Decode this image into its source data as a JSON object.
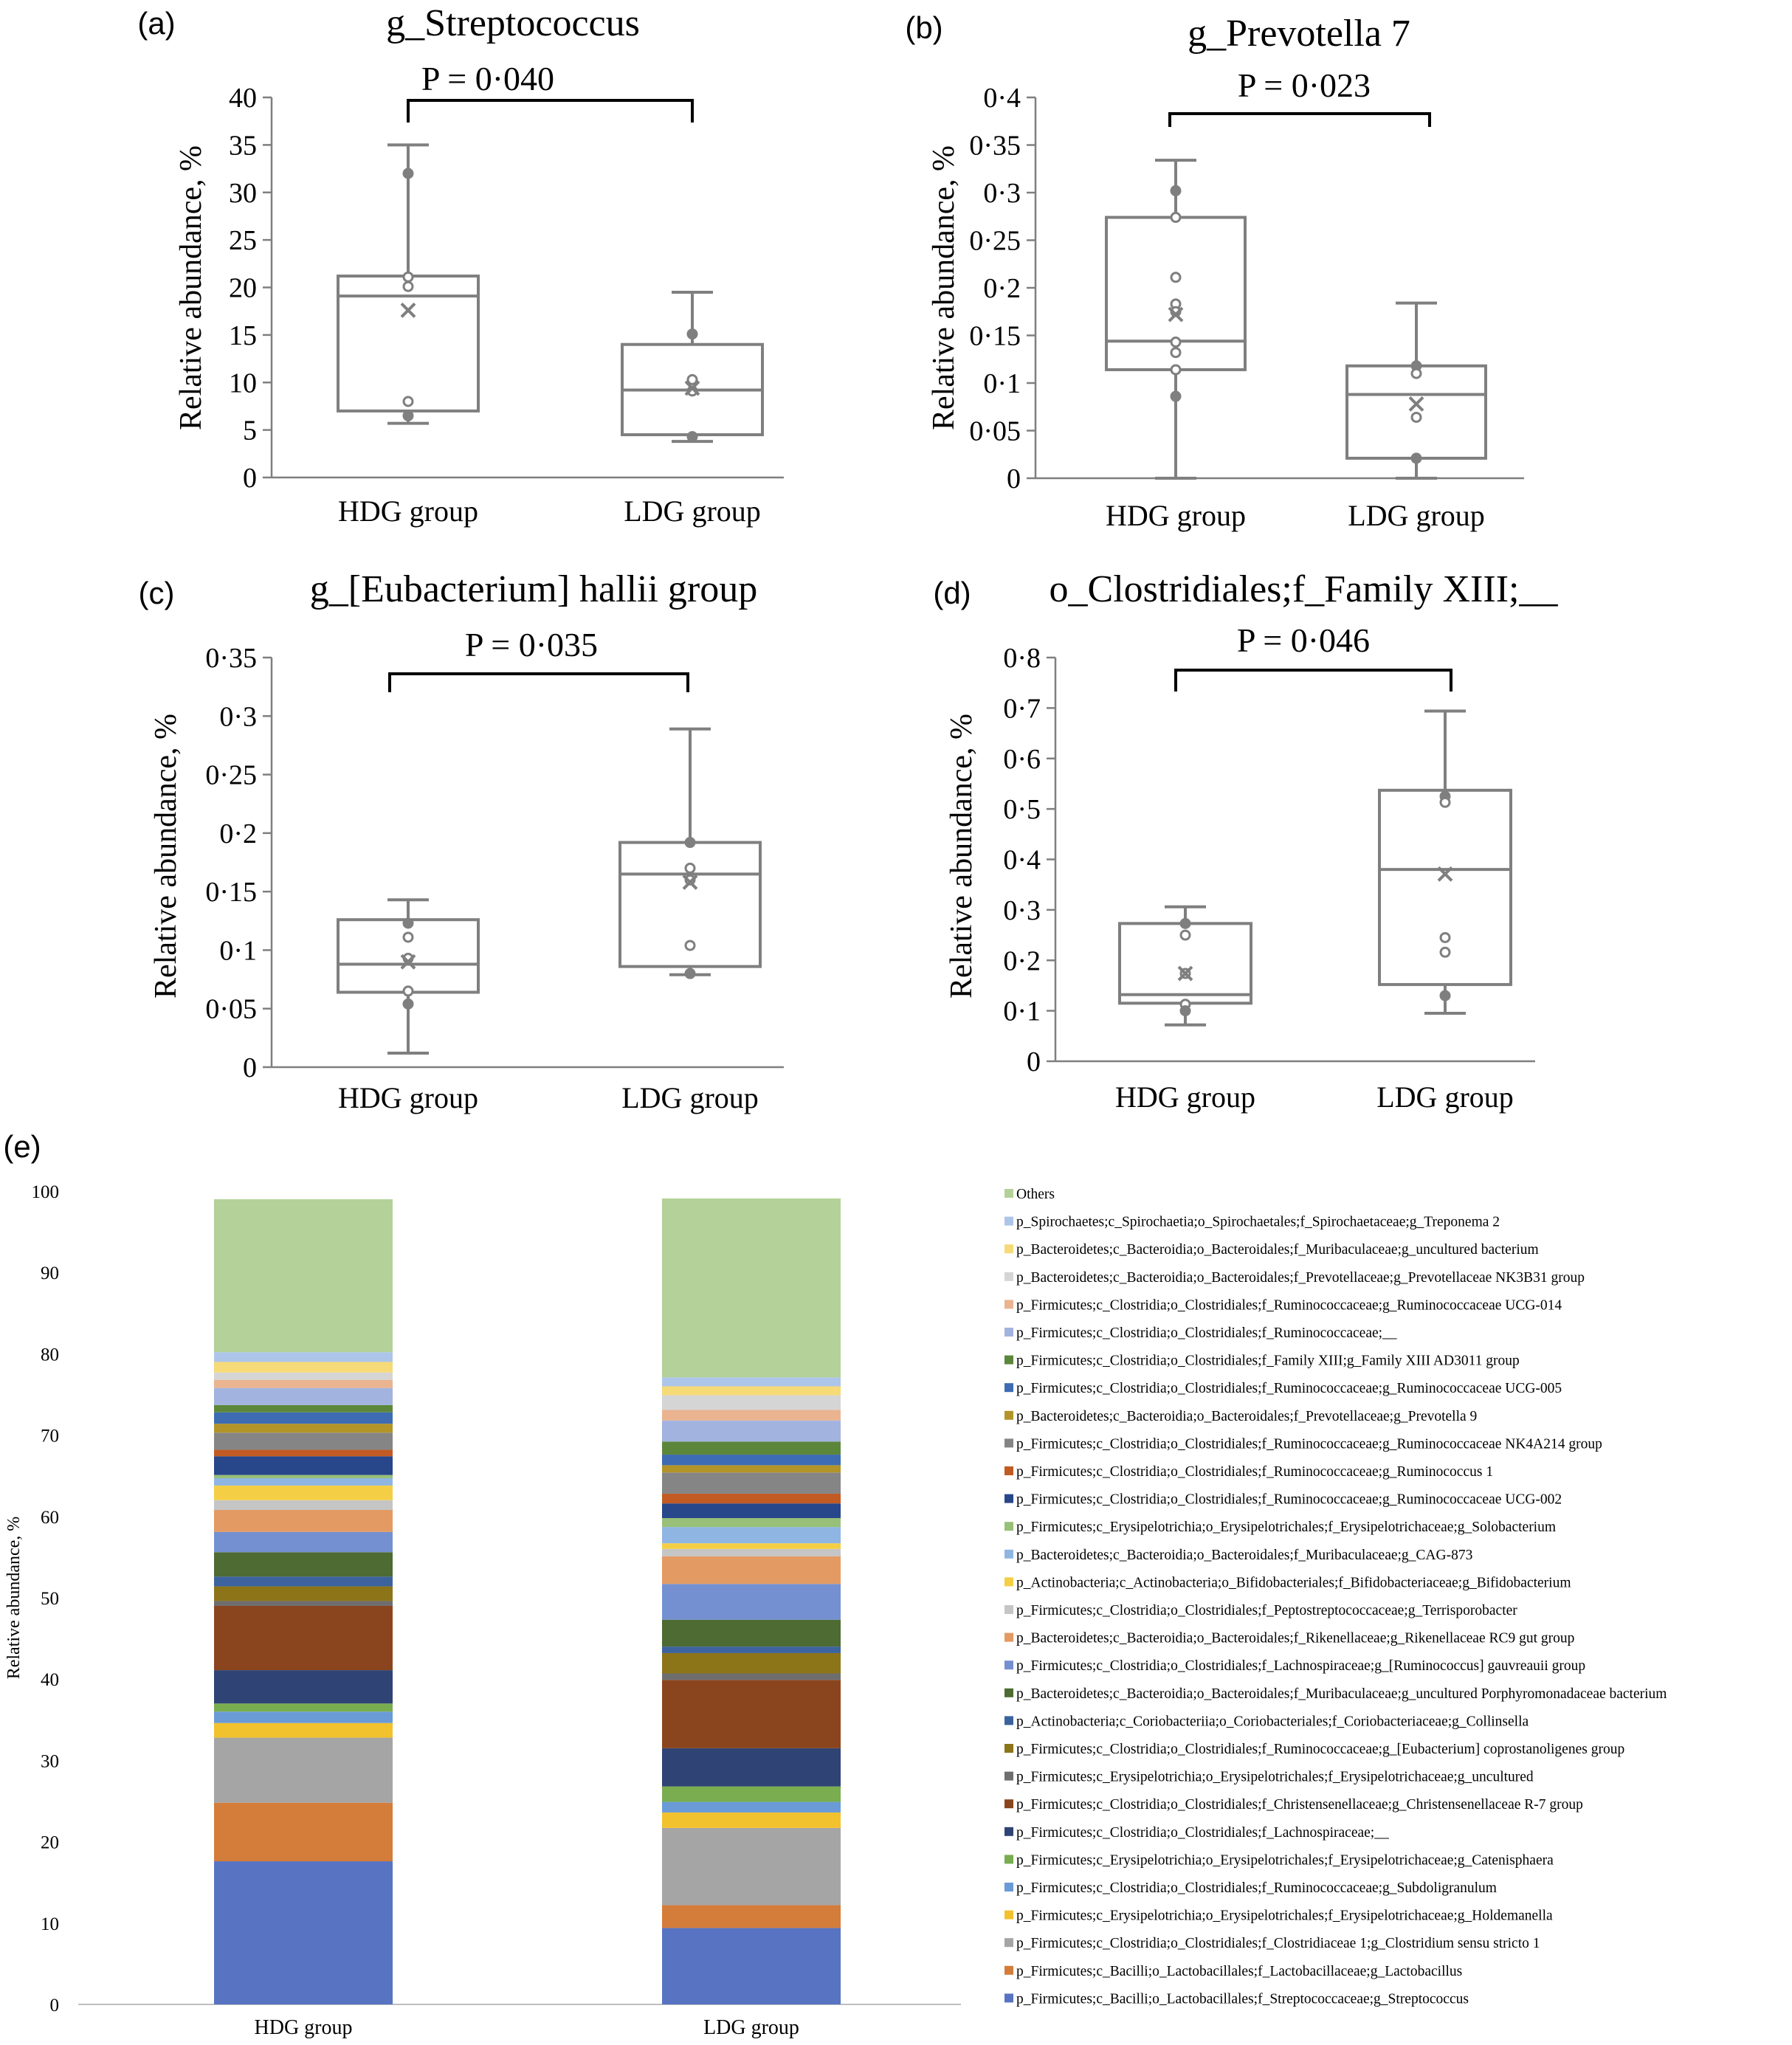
{
  "chart_data": [
    {
      "id": "a",
      "type": "box",
      "panel_label": "(a)",
      "title": "g_Streptococcus",
      "p_value": "P = 0·040",
      "ylabel": "Relative abundance, %",
      "ylim": [
        0,
        40
      ],
      "yticks": [
        "0",
        "5",
        "10",
        "15",
        "20",
        "25",
        "30",
        "35",
        "40"
      ],
      "categories": [
        "HDG group",
        "LDG group"
      ],
      "boxes": [
        {
          "min": 5.7,
          "q1": 7.0,
          "median": 19.1,
          "q3": 21.2,
          "max": 35.0,
          "mean": 17.6,
          "points": [
            32.0,
            21.1,
            20.1,
            8.0,
            6.5
          ]
        },
        {
          "min": 3.8,
          "q1": 4.5,
          "median": 9.2,
          "q3": 14.0,
          "max": 19.5,
          "mean": 9.4,
          "points": [
            15.1,
            10.3,
            9.1,
            4.3
          ]
        }
      ]
    },
    {
      "id": "b",
      "type": "box",
      "panel_label": "(b)",
      "title": "g_Prevotella 7",
      "p_value": "P = 0·023",
      "ylabel": "Relative abundance, %",
      "ylim": [
        0,
        0.4
      ],
      "yticks": [
        "0",
        "0·05",
        "0·1",
        "0·15",
        "0·2",
        "0·25",
        "0·3",
        "0·35",
        "0·4"
      ],
      "categories": [
        "HDG group",
        "LDG group"
      ],
      "boxes": [
        {
          "min": 0.0,
          "q1": 0.114,
          "median": 0.144,
          "q3": 0.274,
          "max": 0.334,
          "mean": 0.172,
          "points": [
            0.302,
            0.274,
            0.211,
            0.183,
            0.175,
            0.143,
            0.132,
            0.114,
            0.086
          ]
        },
        {
          "min": 0.0,
          "q1": 0.021,
          "median": 0.088,
          "q3": 0.118,
          "max": 0.184,
          "mean": 0.078,
          "points": [
            0.118,
            0.11,
            0.064,
            0.021
          ]
        }
      ]
    },
    {
      "id": "c",
      "type": "box",
      "panel_label": "(c)",
      "title": "g_[Eubacterium] hallii group",
      "p_value": "P = 0·035",
      "ylabel": "Relative abundance, %",
      "ylim": [
        0,
        0.35
      ],
      "yticks": [
        "0",
        "0·05",
        "0·1",
        "0·15",
        "0·2",
        "0·25",
        "0·3",
        "0·35"
      ],
      "categories": [
        "HDG group",
        "LDG group"
      ],
      "boxes": [
        {
          "min": 0.012,
          "q1": 0.064,
          "median": 0.088,
          "q3": 0.126,
          "max": 0.143,
          "mean": 0.09,
          "points": [
            0.123,
            0.111,
            0.093,
            0.065,
            0.054
          ]
        },
        {
          "min": 0.079,
          "q1": 0.086,
          "median": 0.165,
          "q3": 0.192,
          "max": 0.289,
          "mean": 0.158,
          "points": [
            0.192,
            0.17,
            0.16,
            0.104,
            0.08
          ]
        }
      ]
    },
    {
      "id": "d",
      "type": "box",
      "panel_label": "(d)",
      "title": "o_Clostridiales;f_Family XIII;__",
      "p_value": "P = 0·046",
      "ylabel": "Relative abundance, %",
      "ylim": [
        0,
        0.8
      ],
      "yticks": [
        "0",
        "0·1",
        "0·2",
        "0·3",
        "0·4",
        "0·5",
        "0·6",
        "0·7",
        "0·8"
      ],
      "categories": [
        "HDG group",
        "LDG group"
      ],
      "boxes": [
        {
          "min": 0.072,
          "q1": 0.115,
          "median": 0.132,
          "q3": 0.273,
          "max": 0.306,
          "mean": 0.174,
          "points": [
            0.273,
            0.25,
            0.174,
            0.113,
            0.1
          ]
        },
        {
          "min": 0.095,
          "q1": 0.152,
          "median": 0.38,
          "q3": 0.537,
          "max": 0.694,
          "mean": 0.371,
          "points": [
            0.525,
            0.513,
            0.245,
            0.216,
            0.13
          ]
        }
      ]
    },
    {
      "id": "e",
      "type": "stacked_bar",
      "panel_label": "(e)",
      "ylabel": "Relative abundance, %",
      "ylim": [
        0,
        100
      ],
      "yticks": [
        "0",
        "10",
        "20",
        "30",
        "40",
        "50",
        "60",
        "70",
        "80",
        "90",
        "100"
      ],
      "categories": [
        "HDG group",
        "LDG group"
      ],
      "series": [
        {
          "name": "p_Firmicutes;c_Bacilli;o_Lactobacillales;f_Streptococcaceae;g_Streptococcus",
          "color": "#5873c2",
          "values": [
            17.6,
            9.4
          ]
        },
        {
          "name": "p_Firmicutes;c_Bacilli;o_Lactobacillales;f_Lactobacillaceae;g_Lactobacillus",
          "color": "#d47c3a",
          "values": [
            7.2,
            2.8
          ]
        },
        {
          "name": "p_Firmicutes;c_Clostridia;o_Clostridiales;f_Clostridiaceae 1;g_Clostridium sensu stricto 1",
          "color": "#a5a5a5",
          "values": [
            8.0,
            9.5
          ]
        },
        {
          "name": "p_Firmicutes;c_Erysipelotrichia;o_Erysipelotrichales;f_Erysipelotrichaceae;g_Holdemanella",
          "color": "#f2c12e",
          "values": [
            1.8,
            1.9
          ]
        },
        {
          "name": "p_Firmicutes;c_Clostridia;o_Clostridiales;f_Ruminococcaceae;g_Subdoligranulum",
          "color": "#6a9bd6",
          "values": [
            1.4,
            1.3
          ]
        },
        {
          "name": "p_Firmicutes;c_Erysipelotrichia;o_Erysipelotrichales;f_Erysipelotrichaceae;g_Catenisphaera",
          "color": "#79ad4f",
          "values": [
            1.0,
            1.9
          ]
        },
        {
          "name": "p_Firmicutes;c_Clostridia;o_Clostridiales;f_Lachnospiraceae;__",
          "color": "#2f4474",
          "values": [
            4.1,
            4.7
          ]
        },
        {
          "name": "p_Firmicutes;c_Clostridia;o_Clostridiales;f_Christensenellaceae;g_Christensenellaceae R-7 group",
          "color": "#8a451e",
          "values": [
            7.9,
            8.4
          ]
        },
        {
          "name": "p_Firmicutes;c_Erysipelotrichia;o_Erysipelotrichales;f_Erysipelotrichaceae;g_uncultured",
          "color": "#6e6e6e",
          "values": [
            0.6,
            0.8
          ]
        },
        {
          "name": "p_Firmicutes;c_Clostridia;o_Clostridiales;f_Ruminococcaceae;g_[Eubacterium] coprostanoligenes group",
          "color": "#8c7418",
          "values": [
            1.8,
            2.5
          ]
        },
        {
          "name": "p_Actinobacteria;c_Coriobacteriia;o_Coriobacteriales;f_Coriobacteriaceae;g_Collinsella",
          "color": "#3c639e",
          "values": [
            1.2,
            0.8
          ]
        },
        {
          "name": "p_Bacteroidetes;c_Bacteroidia;o_Bacteroidales;f_Muribaculaceae;g_uncultured Porphyromonadaceae bacterium",
          "color": "#4d6b32",
          "values": [
            3.0,
            3.3
          ]
        },
        {
          "name": "p_Firmicutes;c_Clostridia;o_Clostridiales;f_Lachnospiraceae;g_[Ruminococcus] gauvreauii group",
          "color": "#7490d0",
          "values": [
            2.5,
            4.4
          ]
        },
        {
          "name": "p_Bacteroidetes;c_Bacteroidia;o_Bacteroidales;f_Rikenellaceae;g_Rikenellaceae RC9 gut group",
          "color": "#e39a63",
          "values": [
            2.7,
            3.4
          ]
        },
        {
          "name": "p_Firmicutes;c_Clostridia;o_Clostridiales;f_Peptostreptococcaceae;g_Terrisporobacter",
          "color": "#c5c5c5",
          "values": [
            1.2,
            0.9
          ]
        },
        {
          "name": "p_Actinobacteria;c_Actinobacteria;o_Bifidobacteriales;f_Bifidobacteriaceae;g_Bifidobacterium",
          "color": "#f4cf45",
          "values": [
            1.8,
            0.7
          ]
        },
        {
          "name": "p_Bacteroidetes;c_Bacteroidia;o_Bacteroidales;f_Muribaculaceae;g_CAG-873",
          "color": "#8fb6e2",
          "values": [
            0.9,
            2.0
          ]
        },
        {
          "name": "p_Firmicutes;c_Erysipelotrichia;o_Erysipelotrichales;f_Erysipelotrichaceae;g_Solobacterium",
          "color": "#98c078",
          "values": [
            0.4,
            1.1
          ]
        },
        {
          "name": "p_Firmicutes;c_Clostridia;o_Clostridiales;f_Ruminococcaceae;g_Ruminococcaceae UCG-002",
          "color": "#28468a",
          "values": [
            2.3,
            1.8
          ]
        },
        {
          "name": "p_Firmicutes;c_Clostridia;o_Clostridiales;f_Ruminococcaceae;g_Ruminococcus 1",
          "color": "#c25a23",
          "values": [
            0.8,
            1.2
          ]
        },
        {
          "name": "p_Firmicutes;c_Clostridia;o_Clostridiales;f_Ruminococcaceae;g_Ruminococcaceae NK4A214 group",
          "color": "#858585",
          "values": [
            2.1,
            2.6
          ]
        },
        {
          "name": "p_Bacteroidetes;c_Bacteroidia;o_Bacteroidales;f_Prevotellaceae;g_Prevotella 9",
          "color": "#b39429",
          "values": [
            1.1,
            0.9
          ]
        },
        {
          "name": "p_Firmicutes;c_Clostridia;o_Clostridiales;f_Ruminococcaceae;g_Ruminococcaceae UCG-005",
          "color": "#3d6cb3",
          "values": [
            1.4,
            1.3
          ]
        },
        {
          "name": "p_Firmicutes;c_Clostridia;o_Clostridiales;f_Family XIII;g_Family XIII AD3011 group",
          "color": "#5c873b",
          "values": [
            0.9,
            1.6
          ]
        },
        {
          "name": "p_Firmicutes;c_Clostridia;o_Clostridiales;f_Ruminococcaceae;__",
          "color": "#a3b3df",
          "values": [
            2.1,
            2.6
          ]
        },
        {
          "name": "p_Firmicutes;c_Clostridia;o_Clostridiales;f_Ruminococcaceae;g_Ruminococcaceae UCG-014",
          "color": "#eab490",
          "values": [
            1.0,
            1.3
          ]
        },
        {
          "name": "p_Bacteroidetes;c_Bacteroidia;o_Bacteroidales;f_Prevotellaceae;g_Prevotellaceae NK3B31 group",
          "color": "#d5d5d5",
          "values": [
            0.9,
            1.8
          ]
        },
        {
          "name": "p_Bacteroidetes;c_Bacteroidia;o_Bacteroidales;f_Muribaculaceae;g_uncultured bacterium",
          "color": "#f6da77",
          "values": [
            1.3,
            1.1
          ]
        },
        {
          "name": "p_Spirochaetes;c_Spirochaetia;o_Spirochaetales;f_Spirochaetaceae;g_Treponema 2",
          "color": "#adc5e9",
          "values": [
            1.2,
            1.1
          ]
        },
        {
          "name": "Others",
          "color": "#b3d198",
          "values": [
            18.8,
            22.0
          ]
        }
      ]
    }
  ]
}
